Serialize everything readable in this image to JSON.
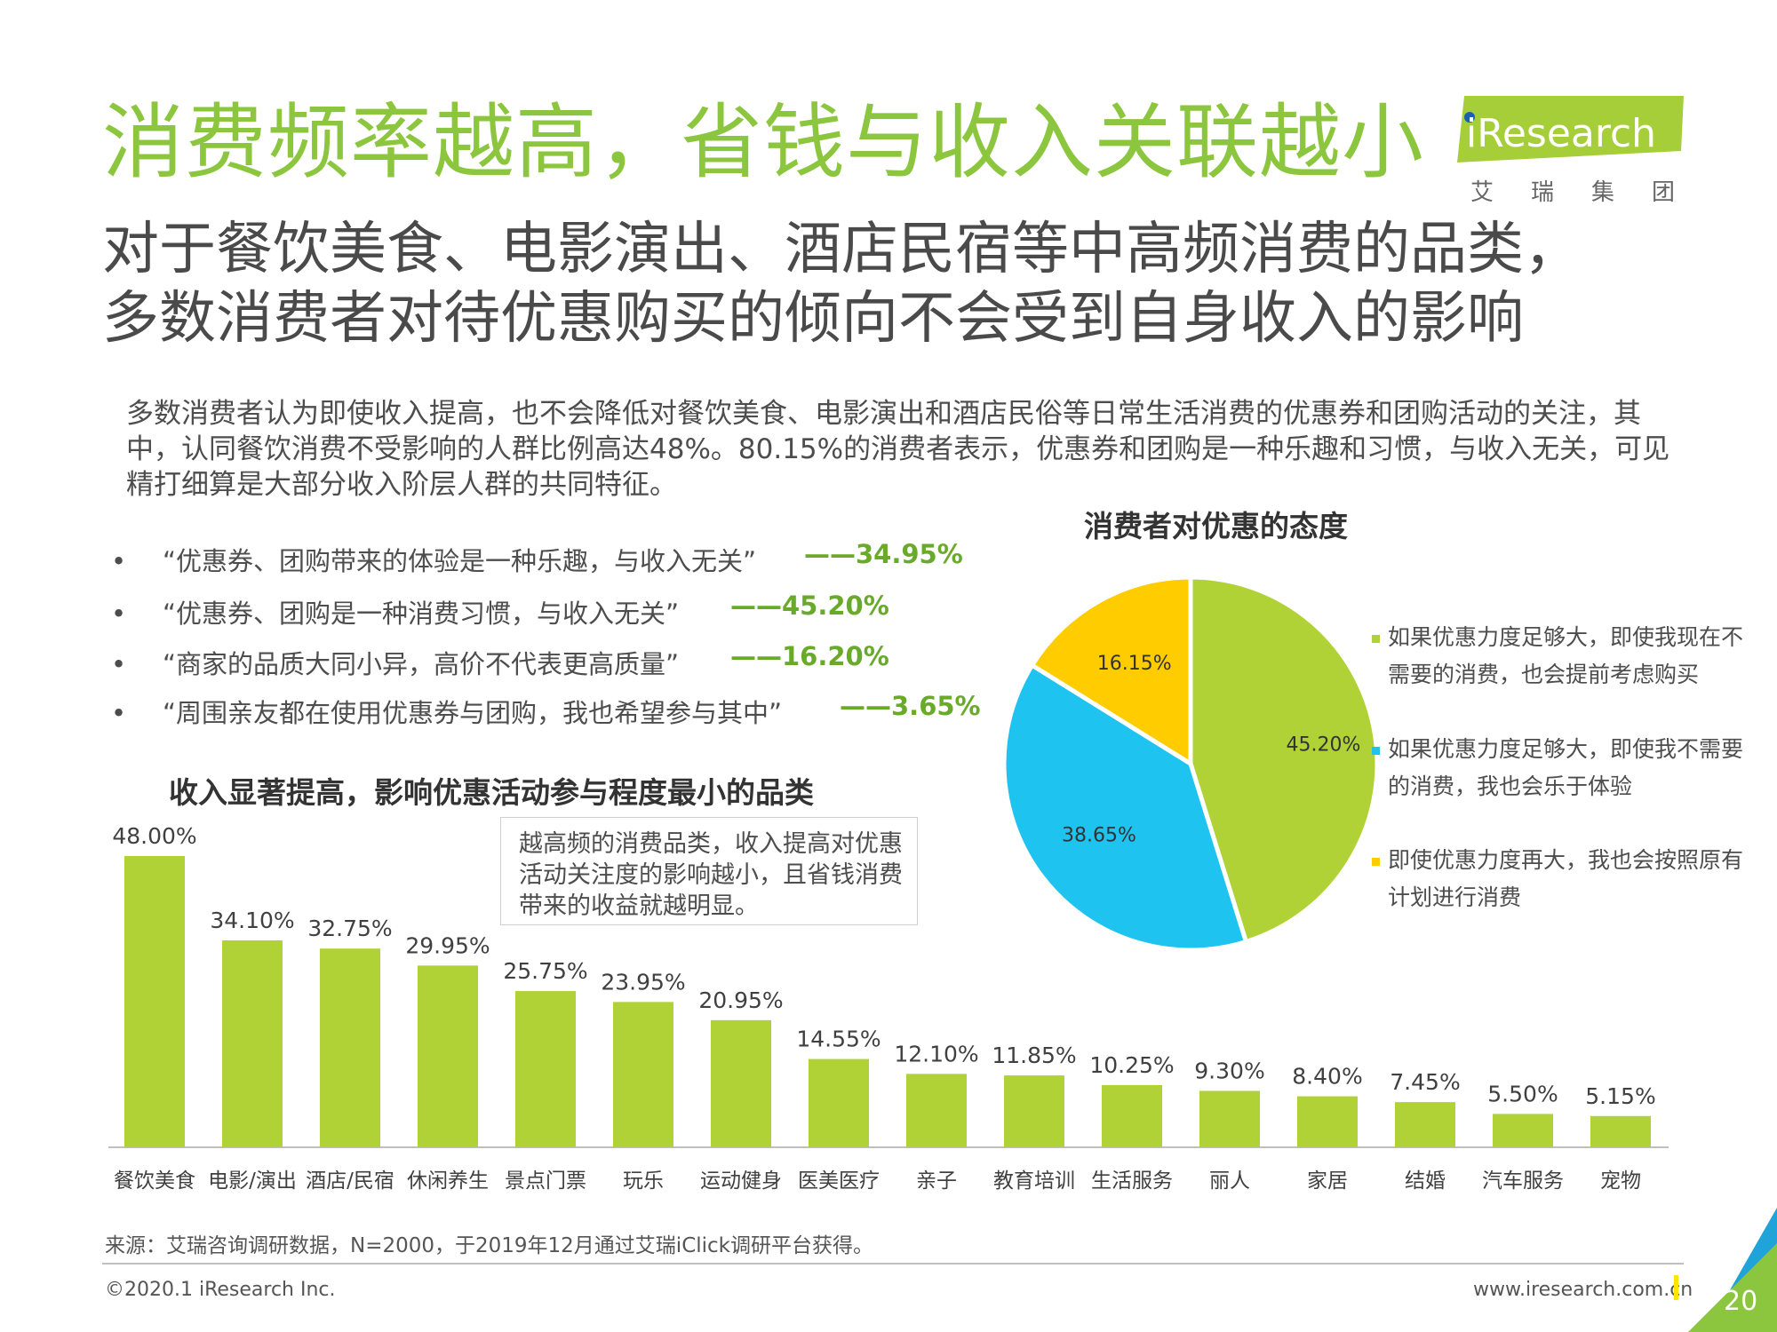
{
  "title": "消费频率越高，省钱与收入关联越小",
  "subtitle_line1": "对于餐饮美食、电影演出、酒店民宿等中高频消费的品类，",
  "subtitle_line2": "多数消费者对待优惠购买的倾向不会受到自身收入的影响",
  "logo": {
    "text": "iResearch",
    "sub": "艾瑞集团",
    "accent": "#a6ce39"
  },
  "intro": "多数消费者认为即使收入提高，也不会降低对餐饮美食、电影演出和酒店民俗等日常生活消费的优惠券和团购活动的关注，其中，认同餐饮消费不受影响的人群比例高达48%。80.15%的消费者表示，优惠券和团购是一种乐趣和习惯，与收入无关，可见精打细算是大部分收入阶层人群的共同特征。",
  "quotes": [
    {
      "text": "“优惠券、团购带来的体验是一种乐趣，与收入无关”",
      "pct": "——34.95%"
    },
    {
      "text": "“优惠券、团购是一种消费习惯，与收入无关”",
      "pct": "——45.20%"
    },
    {
      "text": "“商家的品质大同小异，高价不代表更高质量”",
      "pct": "——16.20%"
    },
    {
      "text": "“周围亲友都在使用优惠券与团购，我也希望参与其中”",
      "pct": "——3.65%"
    }
  ],
  "bullet": "•",
  "bar_title": "收入显著提高，影响优惠活动参与程度最小的品类",
  "note": "越高频的消费品类，收入提高对优惠活动关注度的影响越小，且省钱消费带来的收益就越明显。",
  "pie_title": "消费者对优惠的态度",
  "source": "来源：艾瑞咨询调研数据，N=2000，于2019年12月通过艾瑞iClick调研平台获得。",
  "copyright": "©2020.1 iResearch Inc.",
  "website": "www.iresearch.com.cn",
  "page_number": "20",
  "colors": {
    "green": "#b0d236",
    "blue": "#1fc3ef",
    "yellow": "#ffcc00",
    "title_green": "#8cc63f",
    "pct_green": "#6aaa2a"
  },
  "chart_data": [
    {
      "type": "bar",
      "title": "收入显著提高，影响优惠活动参与程度最小的品类",
      "categories": [
        "餐饮美食",
        "电影/演出",
        "酒店/民宿",
        "休闲养生",
        "景点门票",
        "玩乐",
        "运动健身",
        "医美医疗",
        "亲子",
        "教育培训",
        "生活服务",
        "丽人",
        "家居",
        "结婚",
        "汽车服务",
        "宠物"
      ],
      "values": [
        48.0,
        34.1,
        32.75,
        29.95,
        25.75,
        23.95,
        20.95,
        14.55,
        12.1,
        11.85,
        10.25,
        9.3,
        8.4,
        7.45,
        5.5,
        5.15
      ],
      "labels": [
        "48.00%",
        "34.10%",
        "32.75%",
        "29.95%",
        "25.75%",
        "23.95%",
        "20.95%",
        "14.55%",
        "12.10%",
        "11.85%",
        "10.25%",
        "9.30%",
        "8.40%",
        "7.45%",
        "5.50%",
        "5.15%"
      ],
      "ylim": [
        0,
        48
      ],
      "grid": false,
      "color": "#b0d236"
    },
    {
      "type": "pie",
      "title": "消费者对优惠的态度",
      "slices": [
        {
          "name": "如果优惠力度足够大，即使我现在不需要的消费，也会提前考虑购买",
          "value": 45.2,
          "label": "45.20%",
          "color": "#b0d236"
        },
        {
          "name": "如果优惠力度足够大，即使我不需要的消费，我也会乐于体验",
          "value": 38.65,
          "label": "38.65%",
          "color": "#1fc3ef"
        },
        {
          "name": "即使优惠力度再大，我也会按照原有计划进行消费",
          "value": 16.15,
          "label": "16.15%",
          "color": "#ffcc00"
        }
      ],
      "legend_position": "right"
    }
  ]
}
